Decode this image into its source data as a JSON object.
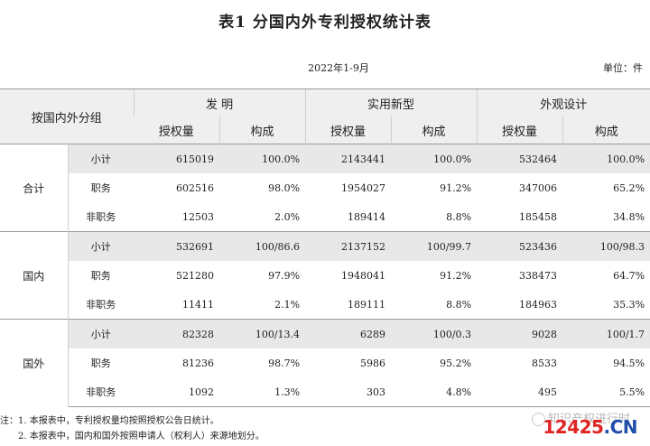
{
  "title": "表1  分国内外专利授权统计表",
  "period": "2022年1-9月",
  "unit": "单位：件",
  "table": {
    "group_header": "按国内外分组",
    "categories": [
      "发 明",
      "实用新型",
      "外观设计"
    ],
    "subheaders": [
      "授权量",
      "构成"
    ],
    "groups": [
      {
        "label": "合计",
        "rows": [
          {
            "sub": "小计",
            "cells": [
              "615019",
              "100.0%",
              "2143441",
              "100.0%",
              "532464",
              "100.0%"
            ]
          },
          {
            "sub": "职务",
            "cells": [
              "602516",
              "98.0%",
              "1954027",
              "91.2%",
              "347006",
              "65.2%"
            ]
          },
          {
            "sub": "非职务",
            "cells": [
              "12503",
              "2.0%",
              "189414",
              "8.8%",
              "185458",
              "34.8%"
            ]
          }
        ]
      },
      {
        "label": "国内",
        "rows": [
          {
            "sub": "小计",
            "cells": [
              "532691",
              "100/86.6",
              "2137152",
              "100/99.7",
              "523436",
              "100/98.3"
            ]
          },
          {
            "sub": "职务",
            "cells": [
              "521280",
              "97.9%",
              "1948041",
              "91.2%",
              "338473",
              "64.7%"
            ]
          },
          {
            "sub": "非职务",
            "cells": [
              "11411",
              "2.1%",
              "189111",
              "8.8%",
              "184963",
              "35.3%"
            ]
          }
        ]
      },
      {
        "label": "国外",
        "rows": [
          {
            "sub": "小计",
            "cells": [
              "82328",
              "100/13.4",
              "6289",
              "100/0.3",
              "9028",
              "100/1.7"
            ]
          },
          {
            "sub": "职务",
            "cells": [
              "81236",
              "98.7%",
              "5986",
              "95.2%",
              "8533",
              "94.5%"
            ]
          },
          {
            "sub": "非职务",
            "cells": [
              "1092",
              "1.3%",
              "303",
              "4.8%",
              "495",
              "5.5%"
            ]
          }
        ]
      }
    ]
  },
  "notes": [
    "注：1. 本报表中，专利授权量均按照授权公告日统计。",
    "　　2. 本报表中，国内和国外按照申请人（权利人）来源地划分。"
  ],
  "watermark": "知识产权进行时",
  "logo": {
    "num": "12425",
    "dot": ".CN"
  }
}
